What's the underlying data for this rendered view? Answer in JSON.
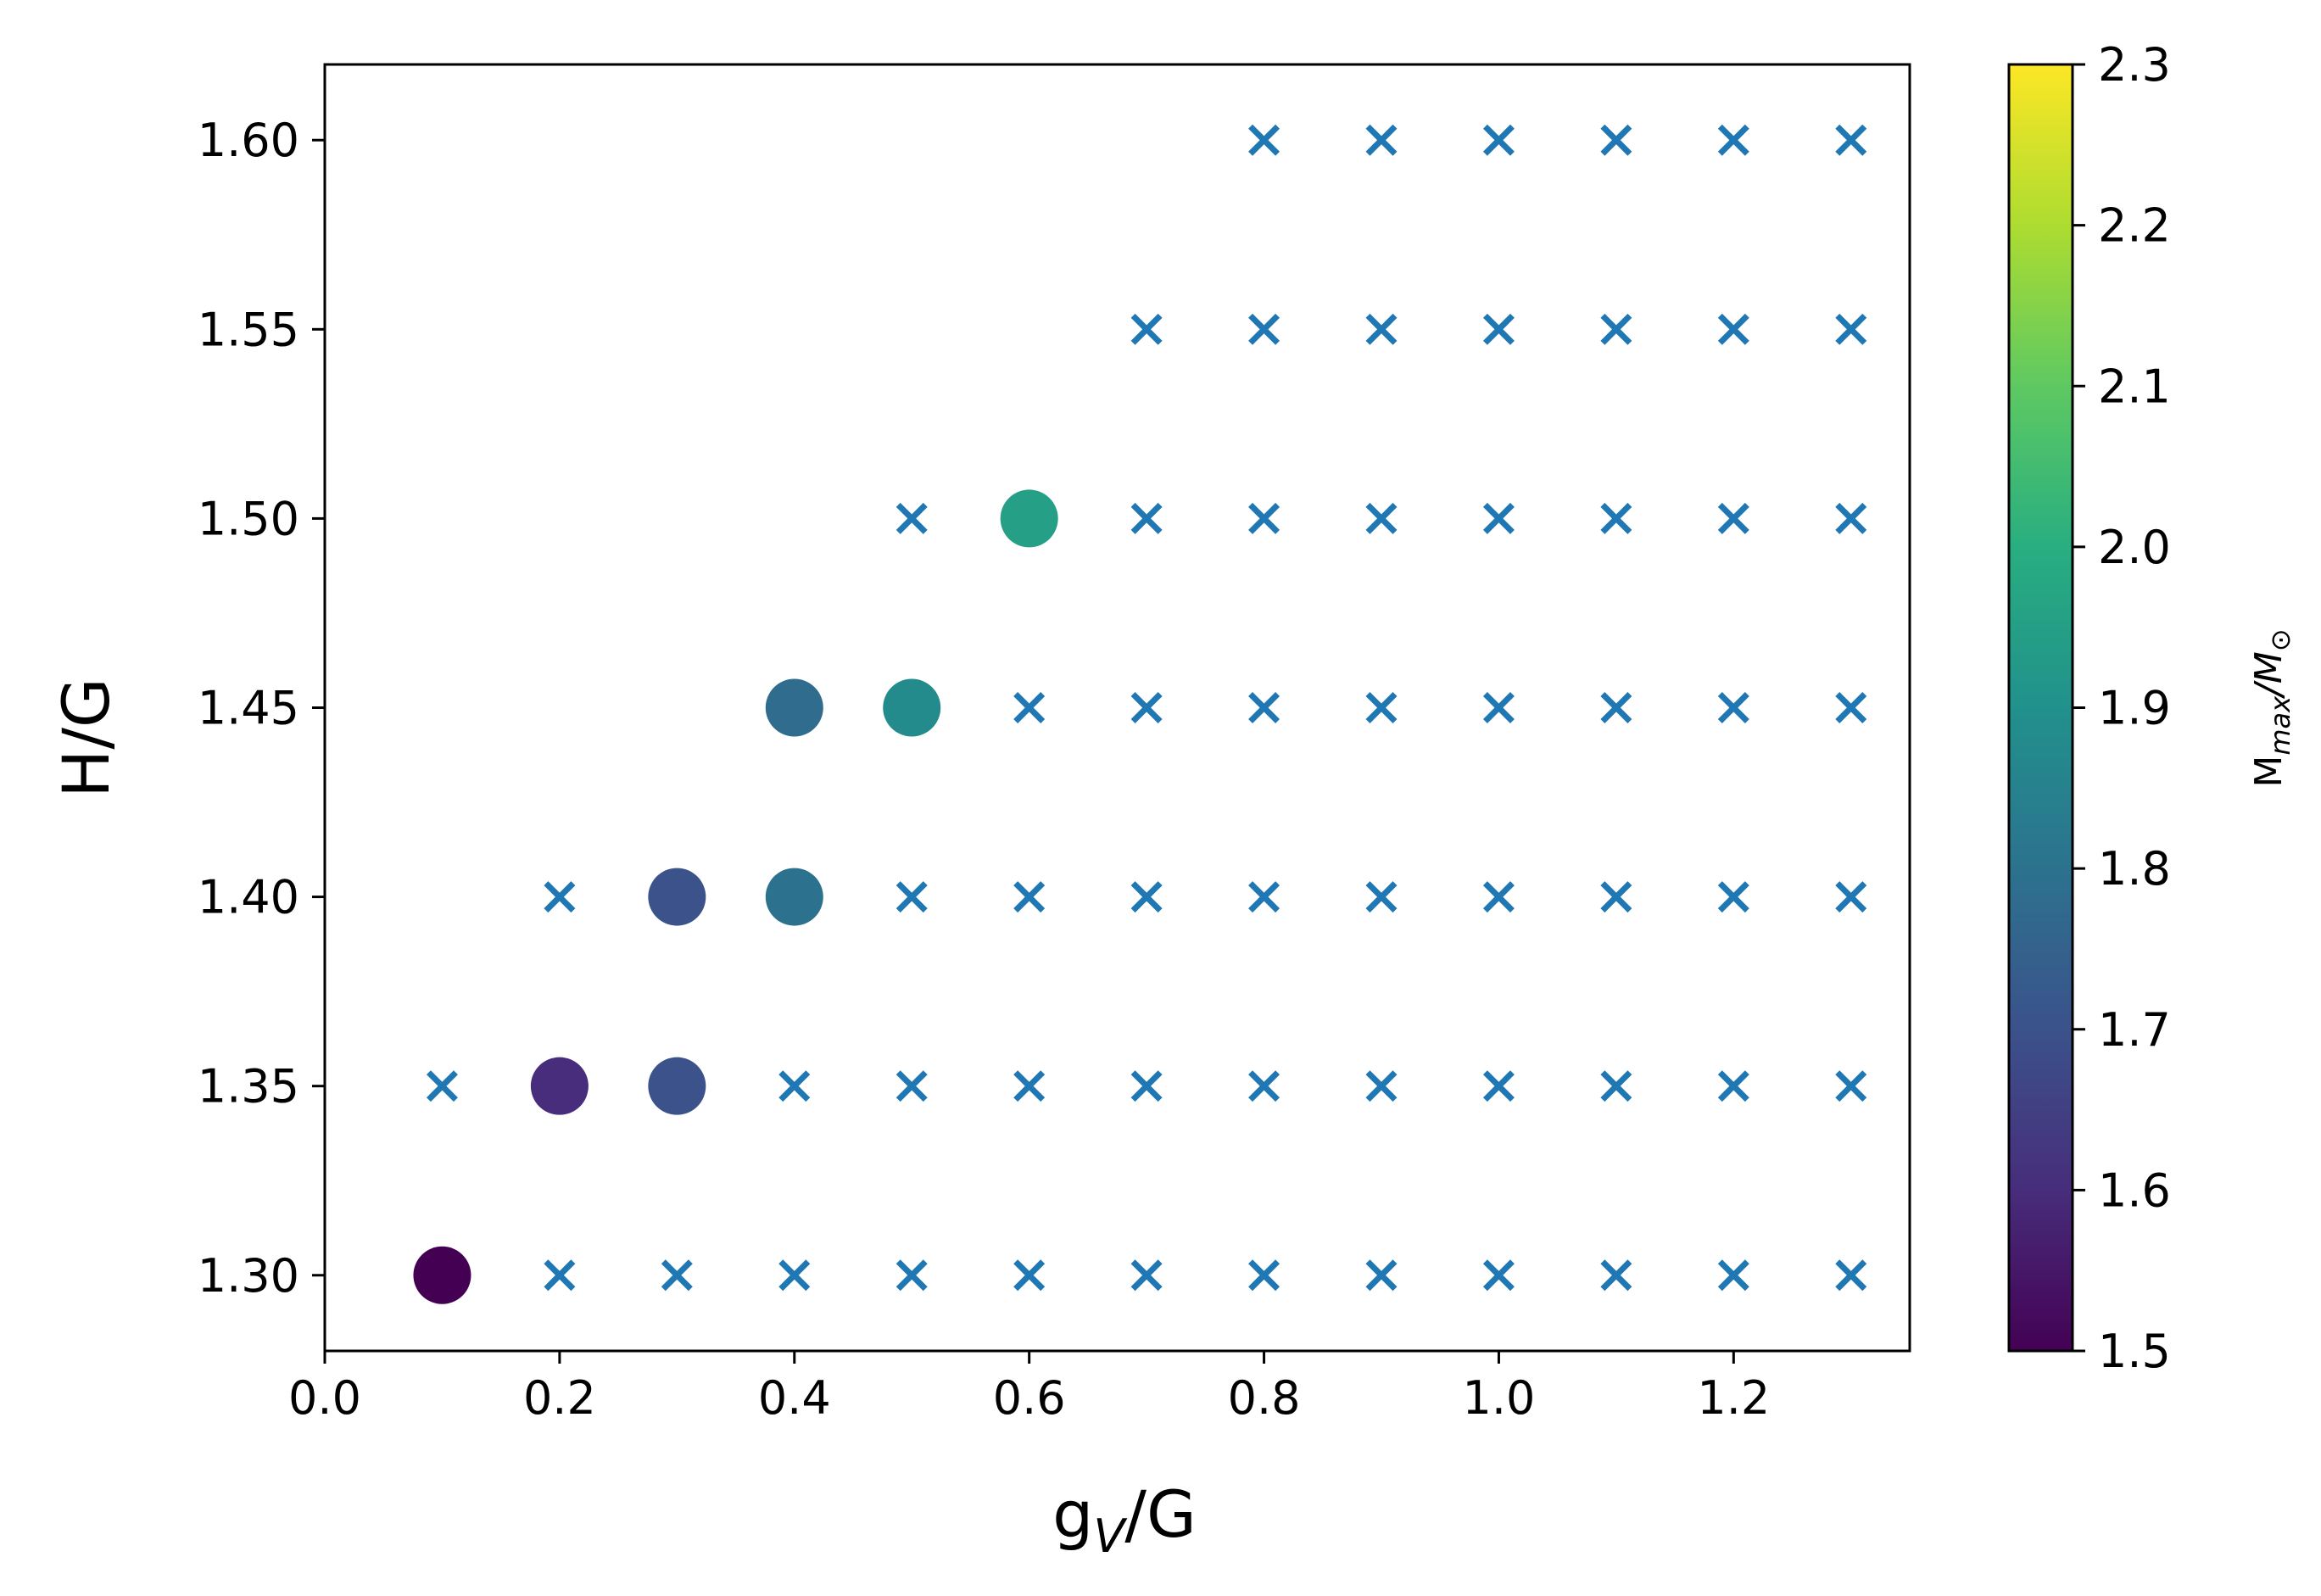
{
  "chart_data": {
    "type": "scatter",
    "title": "",
    "xlabel": {
      "base": "g",
      "sub": "V",
      "rest": "/G"
    },
    "ylabel": "H/G",
    "xlim": [
      0.0,
      1.35
    ],
    "ylim": [
      1.28,
      1.62
    ],
    "xticks": [
      0.0,
      0.2,
      0.4,
      0.6,
      0.8,
      1.0,
      1.2
    ],
    "xtick_labels": [
      "0.0",
      "0.2",
      "0.4",
      "0.6",
      "0.8",
      "1.0",
      "1.2"
    ],
    "yticks": [
      1.3,
      1.35,
      1.4,
      1.45,
      1.5,
      1.55,
      1.6
    ],
    "ytick_labels": [
      "1.30",
      "1.35",
      "1.40",
      "1.45",
      "1.50",
      "1.55",
      "1.60"
    ],
    "grid": false,
    "colorbar": {
      "label": {
        "base": "M",
        "sub1": "max",
        "mid": "/M",
        "sub2": "⊙"
      },
      "range": [
        1.5,
        2.3
      ],
      "ticks": [
        1.5,
        1.6,
        1.7,
        1.8,
        1.9,
        2.0,
        2.1,
        2.2,
        2.3
      ],
      "tick_labels": [
        "1.5",
        "1.6",
        "1.7",
        "1.8",
        "1.9",
        "2.0",
        "2.1",
        "2.2",
        "2.3"
      ],
      "colormap": "viridis"
    },
    "series": [
      {
        "marker": "circle",
        "color_by": "M_max",
        "points": [
          {
            "x": 0.1,
            "y": 1.3,
            "value": 1.5
          },
          {
            "x": 0.2,
            "y": 1.35,
            "value": 1.6
          },
          {
            "x": 0.3,
            "y": 1.35,
            "value": 1.7
          },
          {
            "x": 0.3,
            "y": 1.4,
            "value": 1.7
          },
          {
            "x": 0.4,
            "y": 1.4,
            "value": 1.8
          },
          {
            "x": 0.4,
            "y": 1.45,
            "value": 1.78
          },
          {
            "x": 0.5,
            "y": 1.45,
            "value": 1.88
          },
          {
            "x": 0.6,
            "y": 1.5,
            "value": 1.95
          }
        ]
      },
      {
        "marker": "x",
        "color": "#1f77b4",
        "rows": [
          {
            "y": 1.3,
            "x": [
              0.2,
              0.3,
              0.4,
              0.5,
              0.6,
              0.7,
              0.8,
              0.9,
              1.0,
              1.1,
              1.2,
              1.3
            ]
          },
          {
            "y": 1.35,
            "x": [
              0.1,
              0.4,
              0.5,
              0.6,
              0.7,
              0.8,
              0.9,
              1.0,
              1.1,
              1.2,
              1.3
            ]
          },
          {
            "y": 1.4,
            "x": [
              0.2,
              0.5,
              0.6,
              0.7,
              0.8,
              0.9,
              1.0,
              1.1,
              1.2,
              1.3
            ]
          },
          {
            "y": 1.45,
            "x": [
              0.6,
              0.7,
              0.8,
              0.9,
              1.0,
              1.1,
              1.2,
              1.3
            ]
          },
          {
            "y": 1.5,
            "x": [
              0.5,
              0.7,
              0.8,
              0.9,
              1.0,
              1.1,
              1.2,
              1.3
            ]
          },
          {
            "y": 1.55,
            "x": [
              0.7,
              0.8,
              0.9,
              1.0,
              1.1,
              1.2,
              1.3
            ]
          },
          {
            "y": 1.6,
            "x": [
              0.8,
              0.9,
              1.0,
              1.1,
              1.2,
              1.3
            ]
          }
        ]
      }
    ]
  }
}
